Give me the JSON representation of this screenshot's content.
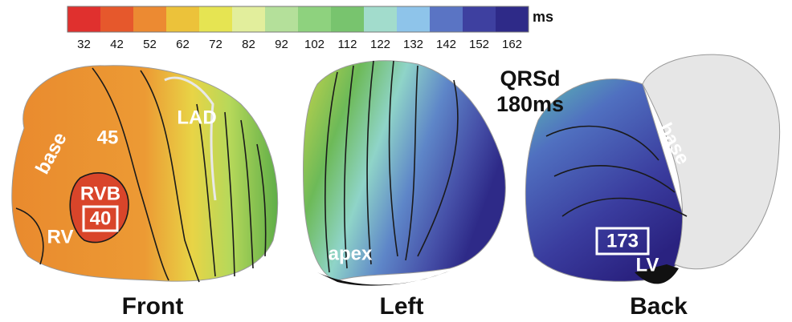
{
  "colorbar": {
    "unit": "ms",
    "ticks": [
      "32",
      "42",
      "52",
      "62",
      "72",
      "82",
      "92",
      "102",
      "112",
      "122",
      "132",
      "142",
      "152",
      "162"
    ],
    "colors": [
      "#e0302e",
      "#e6582c",
      "#ec8a32",
      "#ecc23a",
      "#e6e452",
      "#e2ee9c",
      "#b4e09a",
      "#8ed27e",
      "#78c46e",
      "#a2dccc",
      "#8ec4ea",
      "#5a74c4",
      "#3e40a0",
      "#2e2a88"
    ]
  },
  "views": [
    {
      "label": "Front",
      "annotations": [
        "base",
        "45",
        "LAD",
        "RVB",
        "40",
        "RV"
      ]
    },
    {
      "label": "Left",
      "annotations": [
        "apex"
      ]
    },
    {
      "label": "Back",
      "annotations": [
        "base",
        "173",
        "LV"
      ]
    }
  ],
  "qrsd": {
    "title": "QRSd",
    "value": "180ms"
  }
}
